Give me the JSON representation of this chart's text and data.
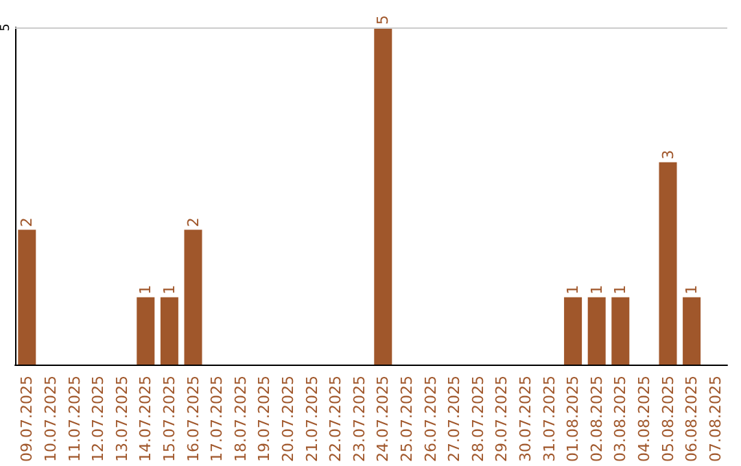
{
  "chart_data": {
    "type": "bar",
    "categories": [
      "09.07.2025",
      "10.07.2025",
      "11.07.2025",
      "12.07.2025",
      "13.07.2025",
      "14.07.2025",
      "15.07.2025",
      "16.07.2025",
      "17.07.2025",
      "18.07.2025",
      "19.07.2025",
      "20.07.2025",
      "21.07.2025",
      "22.07.2025",
      "23.07.2025",
      "24.07.2025",
      "25.07.2025",
      "26.07.2025",
      "27.07.2025",
      "28.07.2025",
      "29.07.2025",
      "30.07.2025",
      "31.07.2025",
      "01.08.2025",
      "02.08.2025",
      "03.08.2025",
      "04.08.2025",
      "05.08.2025",
      "06.08.2025",
      "07.08.2025"
    ],
    "values": [
      2,
      0,
      0,
      0,
      0,
      1,
      1,
      2,
      0,
      0,
      0,
      0,
      0,
      0,
      0,
      5,
      0,
      0,
      0,
      0,
      0,
      0,
      0,
      1,
      1,
      1,
      0,
      3,
      1,
      0
    ],
    "value_labels": [
      "2",
      null,
      null,
      null,
      null,
      "1",
      "1",
      "2",
      null,
      null,
      null,
      null,
      null,
      null,
      null,
      "5",
      null,
      null,
      null,
      null,
      null,
      null,
      null,
      "1",
      "1",
      "1",
      null,
      "3",
      "1",
      null
    ],
    "color": "#a0572b",
    "ylim": [
      0,
      5
    ],
    "yticks": [
      5
    ],
    "ref_lines": [
      {
        "axis": "y",
        "value": 5,
        "color": "#cccccc"
      }
    ]
  }
}
